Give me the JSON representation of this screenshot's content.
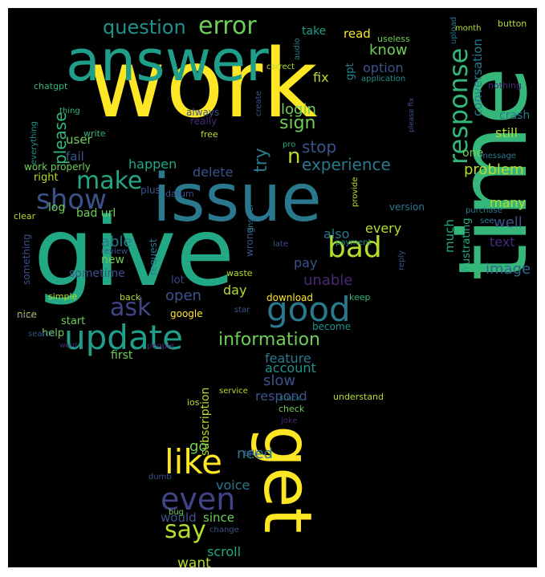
{
  "words": [
    {
      "text": "work",
      "color": "#fde725"
    },
    {
      "text": "answer",
      "color": "#1f9e89"
    },
    {
      "text": "time",
      "color": "#35b779"
    },
    {
      "text": "issue",
      "color": "#2a788e"
    },
    {
      "text": "give",
      "color": "#22a884"
    },
    {
      "text": "get",
      "color": "#fde725"
    },
    {
      "text": "update",
      "color": "#1f9e89"
    },
    {
      "text": "good",
      "color": "#2a788e"
    },
    {
      "text": "bad",
      "color": "#b5de2b"
    },
    {
      "text": "like",
      "color": "#fde725"
    },
    {
      "text": "even",
      "color": "#414487"
    },
    {
      "text": "make",
      "color": "#22a884"
    },
    {
      "text": "show",
      "color": "#3b528b"
    },
    {
      "text": "response",
      "color": "#35b779"
    },
    {
      "text": "error",
      "color": "#6ece58"
    },
    {
      "text": "ask",
      "color": "#414487"
    },
    {
      "text": "say",
      "color": "#b5de2b"
    },
    {
      "text": "information",
      "color": "#6ece58"
    },
    {
      "text": "question",
      "color": "#21918c"
    },
    {
      "text": "experience",
      "color": "#2a788e"
    },
    {
      "text": "n",
      "color": "#b5de2b"
    },
    {
      "text": "try",
      "color": "#2a788e"
    },
    {
      "text": "sign",
      "color": "#6ece58"
    },
    {
      "text": "stop",
      "color": "#3b528b"
    },
    {
      "text": "know",
      "color": "#6ece58"
    },
    {
      "text": "option",
      "color": "#3b528b"
    },
    {
      "text": "login",
      "color": "#6ece58"
    },
    {
      "text": "please",
      "color": "#35b779"
    },
    {
      "text": "problem",
      "color": "#b5de2b"
    },
    {
      "text": "conversation",
      "color": "#2a788e"
    },
    {
      "text": "crash",
      "color": "#2a788e"
    },
    {
      "text": "still",
      "color": "#b5de2b"
    },
    {
      "text": "one",
      "color": "#6ece58"
    },
    {
      "text": "many",
      "color": "#b5de2b"
    },
    {
      "text": "well",
      "color": "#3b528b"
    },
    {
      "text": "text",
      "color": "#482878"
    },
    {
      "text": "image",
      "color": "#31688e"
    },
    {
      "text": "much",
      "color": "#22a884"
    },
    {
      "text": "frustrating",
      "color": "#22a884"
    },
    {
      "text": "unable",
      "color": "#482878"
    },
    {
      "text": "also",
      "color": "#2a788e"
    },
    {
      "text": "every",
      "color": "#b5de2b"
    },
    {
      "text": "pay",
      "color": "#3b528b"
    },
    {
      "text": "able",
      "color": "#2a788e"
    },
    {
      "text": "delete",
      "color": "#3b528b"
    },
    {
      "text": "happen",
      "color": "#22a884"
    },
    {
      "text": "user",
      "color": "#6ece58"
    },
    {
      "text": "fail",
      "color": "#3b528b"
    },
    {
      "text": "fix",
      "color": "#b5de2b"
    },
    {
      "text": "read",
      "color": "#fde725"
    },
    {
      "text": "take",
      "color": "#1f9e89"
    },
    {
      "text": "gpt",
      "color": "#26828e"
    },
    {
      "text": "open",
      "color": "#3b528b"
    },
    {
      "text": "day",
      "color": "#b5de2b"
    },
    {
      "text": "feature",
      "color": "#2a788e"
    },
    {
      "text": "slow",
      "color": "#3b528b"
    },
    {
      "text": "account",
      "color": "#21918c"
    },
    {
      "text": "respond",
      "color": "#3b528b"
    },
    {
      "text": "subscription",
      "color": "#b5de2b"
    },
    {
      "text": "go",
      "color": "#6ece58"
    },
    {
      "text": "need",
      "color": "#2a788e"
    },
    {
      "text": "voice",
      "color": "#2a788e"
    },
    {
      "text": "would",
      "color": "#3b528b"
    },
    {
      "text": "since",
      "color": "#6ece58"
    },
    {
      "text": "scroll",
      "color": "#22a884"
    },
    {
      "text": "want",
      "color": "#b5de2b"
    },
    {
      "text": "bad url",
      "color": "#6ece58"
    },
    {
      "text": "log",
      "color": "#6ece58"
    },
    {
      "text": "new",
      "color": "#6ece58"
    },
    {
      "text": "sometime",
      "color": "#3b528b"
    },
    {
      "text": "lot",
      "color": "#414487"
    },
    {
      "text": "first",
      "color": "#6ece58"
    },
    {
      "text": "help",
      "color": "#6ece58"
    },
    {
      "text": "start",
      "color": "#6ece58"
    },
    {
      "text": "nice",
      "color": "#b5de2b"
    },
    {
      "text": "simple",
      "color": "#b5de2b"
    },
    {
      "text": "google",
      "color": "#fde725"
    },
    {
      "text": "back",
      "color": "#b5de2b"
    },
    {
      "text": "download",
      "color": "#fde725"
    },
    {
      "text": "become",
      "color": "#21918c"
    },
    {
      "text": "keep",
      "color": "#35b779"
    },
    {
      "text": "work properly",
      "color": "#6ece58"
    },
    {
      "text": "right",
      "color": "#b5de2b"
    },
    {
      "text": "chatgpt",
      "color": "#35b779"
    },
    {
      "text": "thing",
      "color": "#35b779"
    },
    {
      "text": "write",
      "color": "#35b779"
    },
    {
      "text": "everything",
      "color": "#21918c"
    },
    {
      "text": "clear",
      "color": "#b5de2b"
    },
    {
      "text": "something",
      "color": "#3b528b"
    },
    {
      "text": "always",
      "color": "#3b528b"
    },
    {
      "text": "really",
      "color": "#482878"
    },
    {
      "text": "free",
      "color": "#b5de2b"
    },
    {
      "text": "create",
      "color": "#3b528b"
    },
    {
      "text": "pro",
      "color": "#22a884"
    },
    {
      "text": "plus",
      "color": "#3b528b"
    },
    {
      "text": "correct",
      "color": "#b5de2b"
    },
    {
      "text": "audio",
      "color": "#2a788e"
    },
    {
      "text": "useless",
      "color": "#6ece58"
    },
    {
      "text": "application",
      "color": "#21918c"
    },
    {
      "text": "upload",
      "color": "#2a788e"
    },
    {
      "text": "please fix",
      "color": "#3b528b"
    },
    {
      "text": "nothing",
      "color": "#482878"
    },
    {
      "text": "month",
      "color": "#b5de2b"
    },
    {
      "text": "button",
      "color": "#b5de2b"
    },
    {
      "text": "message",
      "color": "#2a788e"
    },
    {
      "text": "provide",
      "color": "#b5de2b"
    },
    {
      "text": "version",
      "color": "#2a788e"
    },
    {
      "text": "purchase",
      "color": "#2a788e"
    },
    {
      "text": "see",
      "color": "#2a788e"
    },
    {
      "text": "payment",
      "color": "#21918c"
    },
    {
      "text": "reply",
      "color": "#3b528b"
    },
    {
      "text": "late",
      "color": "#3b528b"
    },
    {
      "text": "wrong",
      "color": "#3b528b"
    },
    {
      "text": "answer",
      "color": "#2a788e"
    },
    {
      "text": "datum",
      "color": "#3b528b"
    },
    {
      "text": "request",
      "color": "#2a788e"
    },
    {
      "text": "review",
      "color": "#3b528b"
    },
    {
      "text": "waste",
      "color": "#b5de2b"
    },
    {
      "text": "star",
      "color": "#3b528b"
    },
    {
      "text": "send",
      "color": "#482878"
    },
    {
      "text": "search",
      "color": "#3b528b"
    },
    {
      "text": "word",
      "color": "#482878"
    },
    {
      "text": "people",
      "color": "#482878"
    },
    {
      "text": "understand",
      "color": "#b5de2b"
    },
    {
      "text": "stuck",
      "color": "#2a788e"
    },
    {
      "text": "check",
      "color": "#6ece58"
    },
    {
      "text": "joke",
      "color": "#482878"
    },
    {
      "text": "service",
      "color": "#b5de2b"
    },
    {
      "text": "ios",
      "color": "#b5de2b"
    },
    {
      "text": "tell",
      "color": "#3b528b"
    },
    {
      "text": "dumb",
      "color": "#3b528b"
    },
    {
      "text": "bug",
      "color": "#6ece58"
    },
    {
      "text": "change",
      "color": "#3b528b"
    }
  ]
}
